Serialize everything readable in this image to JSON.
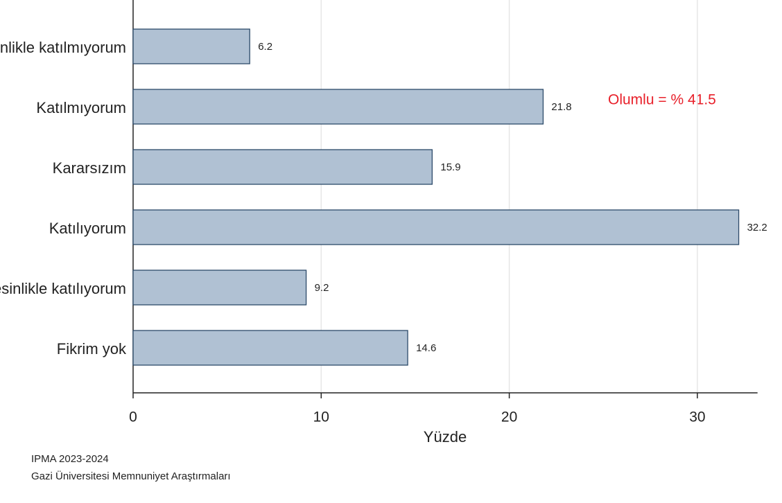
{
  "chart_data": {
    "type": "barh",
    "categories": [
      "Kesinlikle katılmıyorum",
      "Katılmıyorum",
      "Kararsızım",
      "Katılıyorum",
      "Kesinlikle katılıyorum",
      "Fikrim yok"
    ],
    "values": [
      6.2,
      21.8,
      15.9,
      32.2,
      9.2,
      14.6
    ],
    "color": "#b0c1d3",
    "edge_color": "#2c4a6a",
    "x_label": "Yüzde",
    "xlim": [
      0,
      33.2
    ],
    "xticks": [
      0,
      10,
      20,
      30
    ],
    "grid": true,
    "annotation": "Olumlu = % 41.5",
    "notes": [
      "IPMA 2023-2024",
      "Gazi Üniversitesi Memnuniyet Araştırmaları"
    ]
  }
}
